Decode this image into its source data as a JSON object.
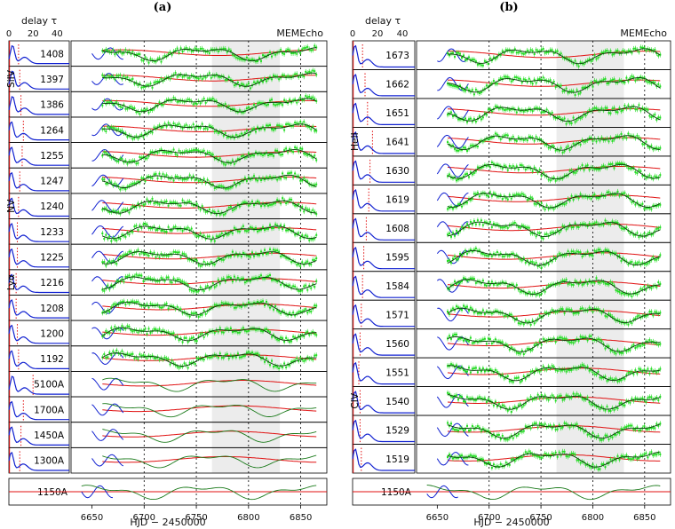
{
  "chart_data": [
    {
      "panel": "a",
      "type": "line",
      "title": "(a)",
      "model_label": "MEMEcho",
      "delay_axis": {
        "label": "delay τ",
        "ticks": [
          "0",
          "20",
          "40"
        ],
        "range": [
          0,
          50
        ]
      },
      "time_axis": {
        "label": "HJD − 2450000",
        "ticks": [
          "6650",
          "6700",
          "6750",
          "6800",
          "6850"
        ],
        "range": [
          6630,
          6875
        ],
        "dashed_lines": [
          6700,
          6750,
          6800,
          6850
        ],
        "shaded_range": [
          6765,
          6830
        ]
      },
      "ion_labels": [
        {
          "text": "SiIV",
          "row": 1
        },
        {
          "text": "NV",
          "row": 6
        },
        {
          "text": "Lyα",
          "row": 9
        }
      ],
      "rows": [
        {
          "label": "1408",
          "delay_peak": 3,
          "lag_marker": 8
        },
        {
          "label": "1397",
          "delay_peak": 3,
          "lag_marker": 9
        },
        {
          "label": "1386",
          "delay_peak": 3,
          "lag_marker": 10
        },
        {
          "label": "1264",
          "delay_peak": 2,
          "lag_marker": 12
        },
        {
          "label": "1255",
          "delay_peak": 2,
          "lag_marker": 11
        },
        {
          "label": "1247",
          "delay_peak": 2,
          "lag_marker": 9
        },
        {
          "label": "1240",
          "delay_peak": 2,
          "lag_marker": 8
        },
        {
          "label": "1233",
          "delay_peak": 2,
          "lag_marker": 7
        },
        {
          "label": "1225",
          "delay_peak": 2,
          "lag_marker": 7
        },
        {
          "label": "1216",
          "delay_peak": 2,
          "lag_marker": 6
        },
        {
          "label": "1208",
          "delay_peak": 2,
          "lag_marker": 6
        },
        {
          "label": "1200",
          "delay_peak": 2,
          "lag_marker": 7
        },
        {
          "label": "1192",
          "delay_peak": 2,
          "lag_marker": 8
        },
        {
          "label": "5100A",
          "delay_peak": 3,
          "lag_marker": 20
        },
        {
          "label": "1700A",
          "delay_peak": 2,
          "lag_marker": 12
        },
        {
          "label": "1450A",
          "delay_peak": 2,
          "lag_marker": 10
        },
        {
          "label": "1300A",
          "delay_peak": 2,
          "lag_marker": 9
        },
        {
          "label": "1150A",
          "delay_peak": null,
          "lag_marker": null
        }
      ]
    },
    {
      "panel": "b",
      "type": "line",
      "title": "(b)",
      "model_label": "MEMEcho",
      "delay_axis": {
        "label": "delay τ",
        "ticks": [
          "0",
          "20",
          "40"
        ],
        "range": [
          0,
          50
        ]
      },
      "time_axis": {
        "label": "HJD − 2450000",
        "ticks": [
          "6650",
          "6700",
          "6750",
          "6800",
          "6850"
        ],
        "range": [
          6630,
          6875
        ],
        "dashed_lines": [
          6700,
          6750,
          6800,
          6850
        ],
        "shaded_range": [
          6765,
          6830
        ]
      },
      "ion_labels": [
        {
          "text": "HeII",
          "row": 3
        },
        {
          "text": "CIV",
          "row": 12
        }
      ],
      "rows": [
        {
          "label": "1673",
          "delay_peak": 2,
          "lag_marker": 8
        },
        {
          "label": "1662",
          "delay_peak": 2,
          "lag_marker": 10
        },
        {
          "label": "1651",
          "delay_peak": 2,
          "lag_marker": 12
        },
        {
          "label": "1641",
          "delay_peak": 2,
          "lag_marker": 16
        },
        {
          "label": "1630",
          "delay_peak": 2,
          "lag_marker": 14
        },
        {
          "label": "1619",
          "delay_peak": 2,
          "lag_marker": 13
        },
        {
          "label": "1608",
          "delay_peak": 2,
          "lag_marker": 11
        },
        {
          "label": "1595",
          "delay_peak": 2,
          "lag_marker": 9
        },
        {
          "label": "1584",
          "delay_peak": 2,
          "lag_marker": 8
        },
        {
          "label": "1571",
          "delay_peak": 2,
          "lag_marker": 7
        },
        {
          "label": "1560",
          "delay_peak": 2,
          "lag_marker": 6
        },
        {
          "label": "1551",
          "delay_peak": 2,
          "lag_marker": 5
        },
        {
          "label": "1540",
          "delay_peak": 2,
          "lag_marker": 6
        },
        {
          "label": "1529",
          "delay_peak": 2,
          "lag_marker": 6
        },
        {
          "label": "1519",
          "delay_peak": 2,
          "lag_marker": 7
        },
        {
          "label": "1150A",
          "delay_peak": null,
          "lag_marker": null
        }
      ]
    }
  ],
  "colors": {
    "model": "#e01010",
    "transfer": "#1020d0",
    "data": "#22dd22",
    "fit": "#1a7a1a",
    "shade": "#ececec",
    "axes": "#000000"
  }
}
